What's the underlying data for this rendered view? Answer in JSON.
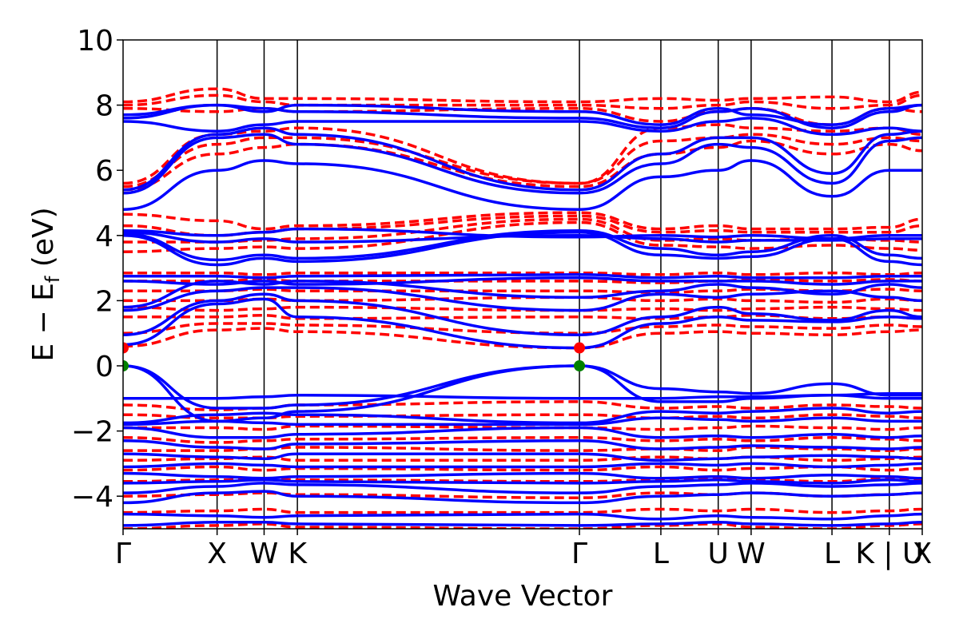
{
  "chart_data": {
    "type": "line",
    "xlabel": "Wave Vector",
    "ylabel": "E − E",
    "ylabel_sub": "f",
    "ylabel_unit": " (eV)",
    "ylim": [
      -5,
      10
    ],
    "yticks": [
      -4,
      -2,
      0,
      2,
      4,
      6,
      8,
      10
    ],
    "ytick_labels": [
      "−4",
      "−2",
      "0",
      "2",
      "4",
      "6",
      "8",
      "10"
    ],
    "grid": false,
    "legend": "none",
    "kpath": {
      "labels": [
        "Γ",
        "X",
        "W",
        "K",
        "Γ",
        "L",
        "U",
        "W",
        "L",
        "K | U",
        "X"
      ],
      "positions": [
        0,
        1.0,
        1.5,
        1.854,
        4.854,
        5.72,
        6.33,
        6.68,
        7.54,
        8.15,
        8.5
      ]
    },
    "colors": {
      "up": "#0000ff",
      "down": "#ff0000",
      "vbm": "#008000",
      "cbm": "#ff0000"
    },
    "markers": [
      {
        "name": "VBM",
        "points": [
          [
            0,
            0.0
          ],
          [
            4.854,
            0.0
          ]
        ]
      },
      {
        "name": "CBM",
        "points": [
          [
            0,
            0.55
          ],
          [
            4.854,
            0.55
          ]
        ]
      }
    ],
    "series": [
      {
        "style": "solid",
        "values": [
          [
            -4.9,
            -4.8,
            -4.8,
            -4.85,
            -4.9,
            -4.85,
            -4.8,
            -4.85,
            -4.9,
            -4.85,
            -4.8
          ],
          [
            -4.55,
            -4.6,
            -4.65,
            -4.6,
            -4.55,
            -4.7,
            -4.6,
            -4.65,
            -4.7,
            -4.6,
            -4.55
          ],
          [
            -4.2,
            -3.9,
            -3.85,
            -4.0,
            -4.2,
            -4.0,
            -3.95,
            -3.9,
            -4.0,
            -3.95,
            -3.9
          ],
          [
            -3.9,
            -3.7,
            -3.6,
            -3.65,
            -3.9,
            -3.7,
            -3.65,
            -3.6,
            -3.7,
            -3.65,
            -3.6
          ],
          [
            -3.6,
            -3.55,
            -3.5,
            -3.55,
            -3.6,
            -3.55,
            -3.5,
            -3.55,
            -3.6,
            -3.5,
            -3.55
          ],
          [
            -3.3,
            -3.4,
            -3.45,
            -3.4,
            -3.3,
            -3.45,
            -3.4,
            -3.45,
            -3.35,
            -3.4,
            -3.45
          ],
          [
            -3.1,
            -3.0,
            -3.05,
            -3.1,
            -3.1,
            -3.0,
            -3.05,
            -3.0,
            -3.1,
            -3.05,
            -3.0
          ],
          [
            -2.7,
            -2.8,
            -2.85,
            -2.7,
            -2.7,
            -2.9,
            -2.85,
            -2.8,
            -2.75,
            -2.8,
            -2.85
          ],
          [
            -2.3,
            -2.5,
            -2.55,
            -2.4,
            -2.3,
            -2.55,
            -2.5,
            -2.45,
            -2.5,
            -2.55,
            -2.5
          ],
          [
            -1.9,
            -2.2,
            -2.2,
            -2.1,
            -1.9,
            -2.2,
            -2.15,
            -2.2,
            -2.1,
            -2.2,
            -2.15
          ],
          [
            -1.8,
            -1.7,
            -1.75,
            -1.8,
            -1.8,
            -1.6,
            -1.65,
            -1.7,
            -1.6,
            -1.7,
            -1.7
          ],
          [
            -1.75,
            -1.5,
            -1.45,
            -1.5,
            -1.75,
            -1.4,
            -1.45,
            -1.4,
            -1.3,
            -1.45,
            -1.4
          ],
          [
            -1.0,
            -1.0,
            -0.95,
            -0.9,
            -1.0,
            -1.0,
            -0.95,
            -0.95,
            -0.9,
            -0.85,
            -0.85
          ],
          [
            0.0,
            -1.3,
            -1.3,
            -1.2,
            0.0,
            -0.7,
            -0.8,
            -0.85,
            -0.55,
            -0.9,
            -0.9
          ],
          [
            0.0,
            -1.7,
            -1.6,
            -1.4,
            0.0,
            -1.1,
            -1.1,
            -1.0,
            -0.9,
            -1.0,
            -1.0
          ],
          [
            0.95,
            2.0,
            2.2,
            2.0,
            0.95,
            1.5,
            1.8,
            1.6,
            1.4,
            1.7,
            1.5
          ],
          [
            0.65,
            1.9,
            2.05,
            1.5,
            0.55,
            1.3,
            1.5,
            1.4,
            1.35,
            1.5,
            1.45
          ],
          [
            1.7,
            2.3,
            2.4,
            2.4,
            1.7,
            2.2,
            2.1,
            2.2,
            2.3,
            2.1,
            2.0
          ],
          [
            1.8,
            2.6,
            2.5,
            2.6,
            2.1,
            2.3,
            2.5,
            2.4,
            2.2,
            2.5,
            2.4
          ],
          [
            2.6,
            2.5,
            2.6,
            2.5,
            2.7,
            2.6,
            2.6,
            2.6,
            2.5,
            2.6,
            2.6
          ],
          [
            2.75,
            2.75,
            2.7,
            2.75,
            2.8,
            2.7,
            2.75,
            2.7,
            2.7,
            2.75,
            2.75
          ],
          [
            4.0,
            3.1,
            3.3,
            3.2,
            4.1,
            3.4,
            3.3,
            3.35,
            3.9,
            3.2,
            3.1
          ],
          [
            4.05,
            3.25,
            3.4,
            3.3,
            4.15,
            3.6,
            3.4,
            3.5,
            4.0,
            3.4,
            3.3
          ],
          [
            4.1,
            3.8,
            3.9,
            3.8,
            4.0,
            3.9,
            3.8,
            3.85,
            3.85,
            3.9,
            3.9
          ],
          [
            4.15,
            4.0,
            4.1,
            4.2,
            3.95,
            4.0,
            3.95,
            4.0,
            3.9,
            4.0,
            4.0
          ],
          [
            4.8,
            6.0,
            6.3,
            6.2,
            4.8,
            5.8,
            6.0,
            6.3,
            5.2,
            6.0,
            6.0
          ],
          [
            5.3,
            7.0,
            7.1,
            6.8,
            5.3,
            6.2,
            6.8,
            6.7,
            5.6,
            6.9,
            7.0
          ],
          [
            5.4,
            7.1,
            7.3,
            7.1,
            5.4,
            6.5,
            7.0,
            7.0,
            5.9,
            7.1,
            7.2
          ],
          [
            7.5,
            7.2,
            7.4,
            7.5,
            7.5,
            7.2,
            7.5,
            7.6,
            7.1,
            7.3,
            7.2
          ],
          [
            7.6,
            8.0,
            7.9,
            7.8,
            7.6,
            7.3,
            7.8,
            7.9,
            7.3,
            7.8,
            8.0
          ],
          [
            7.7,
            8.0,
            7.8,
            8.0,
            7.8,
            7.4,
            7.9,
            7.7,
            7.4,
            7.9,
            8.0
          ]
        ]
      },
      {
        "style": "dashed",
        "values": [
          [
            -5.0,
            -4.9,
            -4.85,
            -4.95,
            -5.0,
            -4.9,
            -4.85,
            -4.95,
            -5.0,
            -4.9,
            -4.85
          ],
          [
            -4.5,
            -4.45,
            -4.4,
            -4.5,
            -4.5,
            -4.4,
            -4.45,
            -4.4,
            -4.5,
            -4.45,
            -4.4
          ],
          [
            -4.0,
            -3.95,
            -3.9,
            -3.95,
            -4.05,
            -3.9,
            -3.95,
            -3.9,
            -4.0,
            -3.95,
            -3.9
          ],
          [
            -3.55,
            -3.5,
            -3.45,
            -3.5,
            -3.55,
            -3.5,
            -3.45,
            -3.5,
            -3.55,
            -3.45,
            -3.5
          ],
          [
            -3.2,
            -3.1,
            -3.2,
            -3.15,
            -3.2,
            -3.1,
            -3.2,
            -3.15,
            -3.1,
            -3.2,
            -3.15
          ],
          [
            -2.9,
            -2.85,
            -2.8,
            -2.9,
            -2.9,
            -2.8,
            -2.85,
            -2.8,
            -2.9,
            -2.85,
            -2.8
          ],
          [
            -2.6,
            -2.6,
            -2.55,
            -2.5,
            -2.6,
            -2.55,
            -2.6,
            -2.5,
            -2.55,
            -2.6,
            -2.55
          ],
          [
            -2.2,
            -2.35,
            -2.3,
            -2.25,
            -2.2,
            -2.3,
            -2.25,
            -2.3,
            -2.2,
            -2.25,
            -2.3
          ],
          [
            -1.9,
            -1.9,
            -1.95,
            -1.85,
            -1.9,
            -1.95,
            -1.9,
            -1.85,
            -1.9,
            -1.95,
            -1.9
          ],
          [
            -1.5,
            -1.6,
            -1.6,
            -1.55,
            -1.5,
            -1.6,
            -1.55,
            -1.6,
            -1.5,
            -1.55,
            -1.6
          ],
          [
            -1.2,
            -1.35,
            -1.3,
            -1.2,
            -1.1,
            -1.3,
            -1.25,
            -1.3,
            -1.2,
            -1.25,
            -1.3
          ],
          [
            0.6,
            1.1,
            1.15,
            1.05,
            0.55,
            1.0,
            1.05,
            1.0,
            0.95,
            1.05,
            1.1
          ],
          [
            1.0,
            1.3,
            1.3,
            1.25,
            1.0,
            1.2,
            1.25,
            1.2,
            1.15,
            1.25,
            1.2
          ],
          [
            1.5,
            1.5,
            1.55,
            1.45,
            1.5,
            1.45,
            1.5,
            1.55,
            1.45,
            1.5,
            1.45
          ],
          [
            1.8,
            1.7,
            1.75,
            1.8,
            1.7,
            1.75,
            1.7,
            1.75,
            1.8,
            1.75,
            1.7
          ],
          [
            2.0,
            2.0,
            2.05,
            2.0,
            2.1,
            2.0,
            2.05,
            2.0,
            1.95,
            2.05,
            2.0
          ],
          [
            2.3,
            2.3,
            2.35,
            2.3,
            2.3,
            2.25,
            2.3,
            2.35,
            2.3,
            2.35,
            2.3
          ],
          [
            2.6,
            2.6,
            2.65,
            2.6,
            2.6,
            2.55,
            2.6,
            2.65,
            2.6,
            2.65,
            2.6
          ],
          [
            2.85,
            2.85,
            2.8,
            2.85,
            2.85,
            2.8,
            2.85,
            2.8,
            2.85,
            2.8,
            2.85
          ],
          [
            3.5,
            3.6,
            3.65,
            3.6,
            4.4,
            3.7,
            3.65,
            3.6,
            3.7,
            3.6,
            3.55
          ],
          [
            3.8,
            3.8,
            3.85,
            3.9,
            4.5,
            3.85,
            3.9,
            3.85,
            3.9,
            3.85,
            3.8
          ],
          [
            4.3,
            4.0,
            4.1,
            4.2,
            4.6,
            4.1,
            4.15,
            4.1,
            4.1,
            4.1,
            4.3
          ],
          [
            4.65,
            4.45,
            4.2,
            4.3,
            4.7,
            4.2,
            4.3,
            4.2,
            4.2,
            4.25,
            4.5
          ],
          [
            5.4,
            6.5,
            6.7,
            6.8,
            5.5,
            6.5,
            6.7,
            6.9,
            6.5,
            6.8,
            6.6
          ],
          [
            5.5,
            6.8,
            7.0,
            7.0,
            5.6,
            6.9,
            7.0,
            7.1,
            6.8,
            7.0,
            6.9
          ],
          [
            5.6,
            7.1,
            7.2,
            7.3,
            5.6,
            7.3,
            7.4,
            7.3,
            7.2,
            7.3,
            7.1
          ],
          [
            7.9,
            7.8,
            7.9,
            7.8,
            7.9,
            7.5,
            7.8,
            7.9,
            7.4,
            7.9,
            7.8
          ],
          [
            8.0,
            8.3,
            8.1,
            8.0,
            8.0,
            7.9,
            8.0,
            8.1,
            7.9,
            8.0,
            8.3
          ],
          [
            8.1,
            8.5,
            8.2,
            8.2,
            8.1,
            8.2,
            8.15,
            8.2,
            8.25,
            8.1,
            8.4
          ]
        ]
      }
    ]
  }
}
